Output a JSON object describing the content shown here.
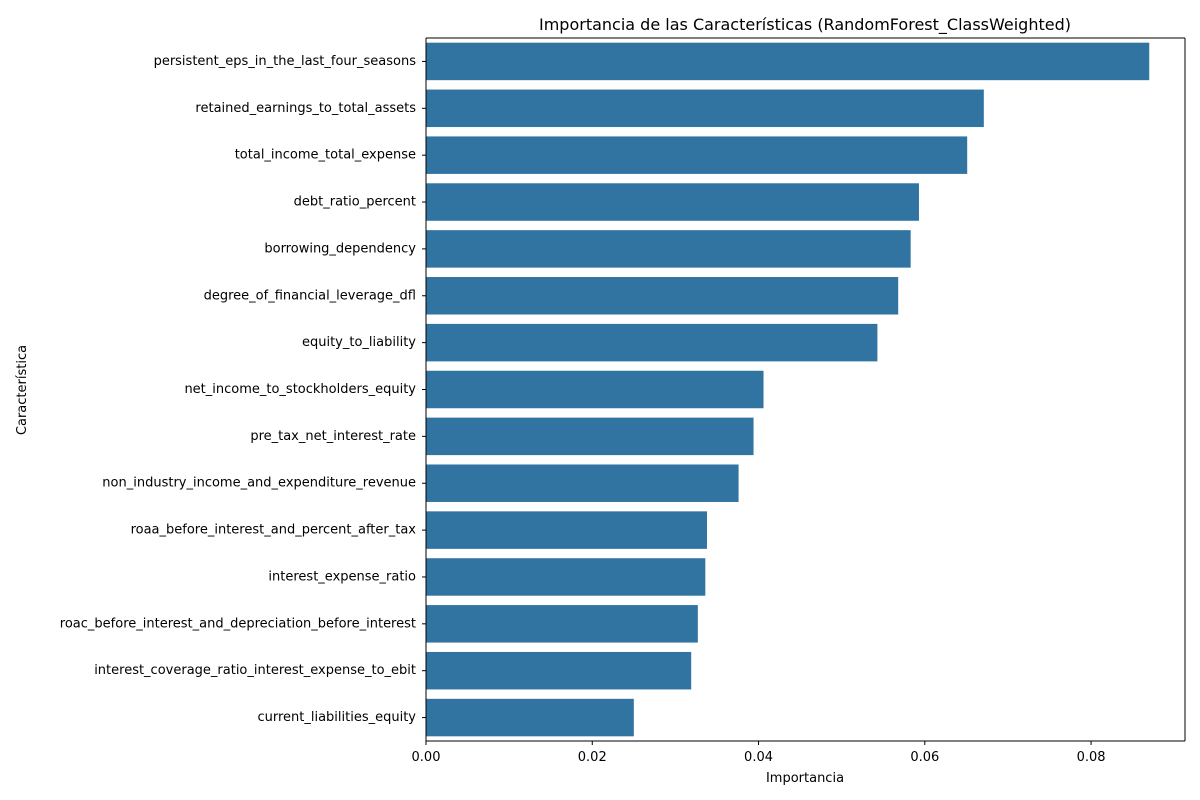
{
  "chart_data": {
    "type": "bar",
    "orientation": "horizontal",
    "title": "Importancia de las Características (RandomForest_ClassWeighted)",
    "xlabel": "Importancia",
    "ylabel": "Característica",
    "xlim": [
      0,
      0.0913
    ],
    "xticks": [
      "0.00",
      "0.02",
      "0.04",
      "0.06",
      "0.08"
    ],
    "xtick_values": [
      0,
      0.02,
      0.04,
      0.06,
      0.08
    ],
    "bar_color": "#3274a1",
    "grid": false,
    "legend": "none",
    "categories": [
      "persistent_eps_in_the_last_four_seasons",
      "retained_earnings_to_total_assets",
      "total_income_total_expense",
      "debt_ratio_percent",
      "borrowing_dependency",
      "degree_of_financial_leverage_dfl",
      "equity_to_liability",
      "net_income_to_stockholders_equity",
      "pre_tax_net_interest_rate",
      "non_industry_income_and_expenditure_revenue",
      "roaa_before_interest_and_percent_after_tax",
      "interest_expense_ratio",
      "roac_before_interest_and_depreciation_before_interest",
      "interest_coverage_ratio_interest_expense_to_ebit",
      "current_liabilities_equity"
    ],
    "values": [
      0.087,
      0.0671,
      0.0651,
      0.0593,
      0.0583,
      0.0568,
      0.0543,
      0.0406,
      0.0394,
      0.0376,
      0.0338,
      0.0336,
      0.0327,
      0.0319,
      0.025
    ]
  }
}
